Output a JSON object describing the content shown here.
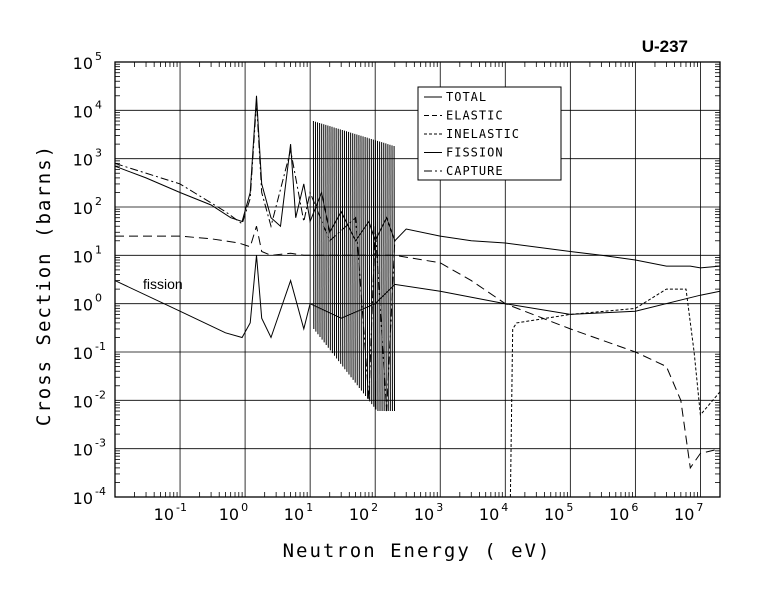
{
  "chart_data": {
    "type": "line",
    "title": "U-237",
    "xlabel": "Neutron Energy ( eV)",
    "ylabel": "Cross Section (barns)",
    "x_scale": "log",
    "y_scale": "log",
    "xlim": [
      0.01,
      20000000
    ],
    "ylim": [
      0.0001,
      100000
    ],
    "grid": true,
    "legend_placement": "top-center",
    "x_ticks": [
      {
        "base": "10",
        "exp": "-1",
        "value": 0.1
      },
      {
        "base": "10",
        "exp": "0",
        "value": 1
      },
      {
        "base": "10",
        "exp": "1",
        "value": 10
      },
      {
        "base": "10",
        "exp": "2",
        "value": 100
      },
      {
        "base": "10",
        "exp": "3",
        "value": 1000
      },
      {
        "base": "10",
        "exp": "4",
        "value": 10000
      },
      {
        "base": "10",
        "exp": "5",
        "value": 100000
      },
      {
        "base": "10",
        "exp": "6",
        "value": 1000000
      },
      {
        "base": "10",
        "exp": "7",
        "value": 10000000
      }
    ],
    "y_ticks": [
      {
        "base": "10",
        "exp": "5",
        "value": 100000
      },
      {
        "base": "10",
        "exp": "4",
        "value": 10000
      },
      {
        "base": "10",
        "exp": "3",
        "value": 1000
      },
      {
        "base": "10",
        "exp": "2",
        "value": 100
      },
      {
        "base": "10",
        "exp": "1",
        "value": 10
      },
      {
        "base": "10",
        "exp": "0",
        "value": 1
      },
      {
        "base": "10",
        "exp": "-1",
        "value": 0.1
      },
      {
        "base": "10",
        "exp": "-2",
        "value": 0.01
      },
      {
        "base": "10",
        "exp": "-3",
        "value": 0.001
      },
      {
        "base": "10",
        "exp": "-4",
        "value": 0.0001
      }
    ],
    "annotations": [
      {
        "text": "fission",
        "x": 0.025,
        "y": 1.5
      }
    ],
    "series": [
      {
        "name": "TOTAL",
        "dash": "solid",
        "x": [
          0.01,
          0.03,
          0.1,
          0.3,
          0.6,
          0.9,
          1.2,
          1.5,
          1.8,
          2.5,
          3.5,
          5,
          6,
          8,
          10,
          15,
          20,
          30,
          50,
          80,
          100,
          150,
          200,
          300,
          1000,
          3000,
          10000,
          100000,
          300000,
          1000000,
          3000000,
          7000000,
          10000000,
          20000000
        ],
        "y": [
          700,
          400,
          200,
          110,
          60,
          50,
          200,
          20000,
          300,
          60,
          40,
          2000,
          60,
          300,
          50,
          200,
          30,
          80,
          20,
          50,
          20,
          60,
          20,
          35,
          25,
          20,
          18,
          12,
          10,
          8,
          6,
          6,
          5.5,
          6
        ]
      },
      {
        "name": "ELASTIC",
        "dash": "long-dash",
        "x": [
          0.01,
          0.1,
          0.3,
          0.8,
          1.2,
          1.5,
          1.8,
          2.5,
          5,
          8,
          10,
          30,
          100,
          200,
          1000,
          3000,
          10000,
          100000,
          1000000,
          3000000,
          5000000,
          7000000,
          10000000,
          20000000
        ],
        "y": [
          25,
          25,
          22,
          18,
          15,
          40,
          12,
          10,
          11,
          10,
          10,
          10,
          10,
          10,
          7,
          3,
          1,
          0.3,
          0.1,
          0.05,
          0.01,
          0.0004,
          0.0008,
          0.001
        ]
      },
      {
        "name": "INELASTIC",
        "dash": "short-dash",
        "x": [
          12000,
          13000,
          15000,
          100000,
          1000000,
          3000000,
          5000000,
          6000000,
          8000000,
          10000000,
          20000000
        ],
        "y": [
          0.0001,
          0.3,
          0.4,
          0.6,
          0.8,
          2,
          2,
          2,
          0.1,
          0.005,
          0.015
        ]
      },
      {
        "name": "FISSION",
        "dash": "solid",
        "x": [
          0.01,
          0.1,
          0.5,
          0.9,
          1.2,
          1.5,
          1.8,
          2.5,
          5,
          8,
          10,
          30,
          100,
          200,
          1000,
          10000,
          100000,
          1000000,
          10000000,
          20000000
        ],
        "y": [
          3,
          0.7,
          0.25,
          0.2,
          0.4,
          10,
          0.5,
          0.2,
          3,
          0.3,
          1,
          0.5,
          1,
          2.5,
          1.8,
          1,
          0.6,
          0.7,
          1.5,
          1.8
        ]
      },
      {
        "name": "CAPTURE",
        "dash": "dash-dot",
        "x": [
          0.01,
          0.1,
          0.5,
          0.9,
          1.2,
          1.5,
          1.8,
          2.5,
          5,
          8,
          10,
          20,
          50,
          80,
          100,
          150,
          200
        ],
        "y": [
          800,
          300,
          80,
          45,
          150,
          15000,
          200,
          40,
          1500,
          50,
          200,
          20,
          60,
          0.01,
          40,
          0.006,
          20
        ]
      }
    ]
  }
}
